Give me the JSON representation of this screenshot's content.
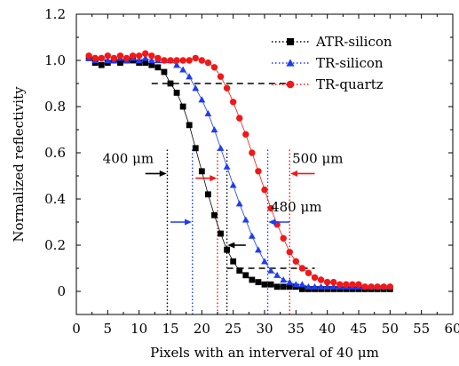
{
  "chart_data": {
    "type": "scatter",
    "xlabel": "Pixels with an interveral of 40 μm",
    "ylabel": "Normalized reflectivity",
    "xlim": [
      0,
      60
    ],
    "ylim": [
      -0.1,
      1.2
    ],
    "x_ticks": [
      0,
      5,
      10,
      15,
      20,
      25,
      30,
      35,
      40,
      45,
      50,
      55,
      60
    ],
    "y_ticks": [
      0,
      0.2,
      0.4,
      0.6,
      0.8,
      1.0,
      1.2
    ],
    "x_tick_labels": [
      "0",
      "5",
      "10",
      "15",
      "20",
      "25",
      "30",
      "35",
      "40",
      "45",
      "50",
      "55",
      "60"
    ],
    "y_tick_labels": [
      "0",
      "0.2",
      "0.4",
      "0.6",
      "0.8",
      "1.0",
      "1.2"
    ],
    "grid": false,
    "legend_position": "top-right",
    "series": [
      {
        "name": "ATR-silicon",
        "color": "#000000",
        "marker": "square",
        "x": [
          2,
          3,
          4,
          5,
          6,
          7,
          8,
          9,
          10,
          11,
          12,
          13,
          14,
          15,
          16,
          17,
          18,
          19,
          20,
          21,
          22,
          23,
          24,
          25,
          26,
          27,
          28,
          29,
          30,
          31,
          32,
          33,
          34,
          35,
          36,
          37,
          38,
          39,
          40,
          41,
          42,
          43,
          44,
          45,
          46,
          47,
          48,
          49,
          50
        ],
        "y": [
          1.01,
          0.99,
          0.98,
          0.99,
          1.0,
          0.99,
          1.0,
          1.0,
          0.99,
          0.99,
          0.98,
          0.97,
          0.95,
          0.9,
          0.86,
          0.8,
          0.72,
          0.62,
          0.52,
          0.42,
          0.33,
          0.25,
          0.18,
          0.13,
          0.09,
          0.07,
          0.05,
          0.04,
          0.03,
          0.03,
          0.02,
          0.02,
          0.02,
          0.02,
          0.01,
          0.01,
          0.01,
          0.01,
          0.01,
          0.01,
          0.01,
          0.01,
          0.01,
          0.01,
          0.01,
          0.01,
          0.01,
          0.01,
          0.01
        ]
      },
      {
        "name": "TR-silicon",
        "color": "#1e3cf0",
        "marker": "triangle",
        "x": [
          2,
          3,
          4,
          5,
          6,
          7,
          8,
          9,
          10,
          11,
          12,
          13,
          14,
          15,
          16,
          17,
          18,
          19,
          20,
          21,
          22,
          23,
          24,
          25,
          26,
          27,
          28,
          29,
          30,
          31,
          32,
          33,
          34,
          35,
          36,
          37,
          38,
          39,
          40,
          41,
          42,
          43,
          44,
          45,
          46,
          47,
          48,
          49,
          50
        ],
        "y": [
          1.01,
          1.0,
          1.01,
          1.0,
          1.0,
          1.01,
          1.0,
          1.01,
          1.0,
          1.01,
          1.0,
          1.0,
          1.0,
          1.0,
          0.98,
          0.96,
          0.93,
          0.88,
          0.83,
          0.77,
          0.7,
          0.62,
          0.54,
          0.46,
          0.38,
          0.31,
          0.24,
          0.18,
          0.13,
          0.09,
          0.07,
          0.05,
          0.04,
          0.03,
          0.03,
          0.02,
          0.02,
          0.02,
          0.02,
          0.02,
          0.02,
          0.02,
          0.02,
          0.02,
          0.02,
          0.02,
          0.02,
          0.02,
          0.02
        ]
      },
      {
        "name": "TR-quartz",
        "color": "#f01818",
        "marker": "circle",
        "x": [
          2,
          3,
          4,
          5,
          6,
          7,
          8,
          9,
          10,
          11,
          12,
          13,
          14,
          15,
          16,
          17,
          18,
          19,
          20,
          21,
          22,
          23,
          24,
          25,
          26,
          27,
          28,
          29,
          30,
          31,
          32,
          33,
          34,
          35,
          36,
          37,
          38,
          39,
          40,
          41,
          42,
          43,
          44,
          45,
          46,
          47,
          48,
          49,
          50
        ],
        "y": [
          1.02,
          1.01,
          1.01,
          1.02,
          1.01,
          1.02,
          1.01,
          1.02,
          1.02,
          1.03,
          1.02,
          1.01,
          1.0,
          1.0,
          1.0,
          1.0,
          1.0,
          1.01,
          1.0,
          0.99,
          0.97,
          0.93,
          0.88,
          0.82,
          0.75,
          0.68,
          0.6,
          0.52,
          0.44,
          0.36,
          0.29,
          0.23,
          0.17,
          0.13,
          0.1,
          0.08,
          0.06,
          0.05,
          0.04,
          0.04,
          0.03,
          0.03,
          0.03,
          0.03,
          0.02,
          0.02,
          0.02,
          0.02,
          0.02
        ]
      }
    ],
    "annotations": [
      {
        "text": "400 μm",
        "color": "#000000"
      },
      {
        "text": "480 μm",
        "color": "#1e3cf0"
      },
      {
        "text": "500 μm",
        "color": "#f01818"
      }
    ],
    "dashed_levels": [
      {
        "y": 0.9,
        "x_range": [
          12,
          34
        ]
      },
      {
        "y": 0.1,
        "x_range": [
          24,
          38
        ]
      }
    ],
    "vertical_markers": [
      {
        "x": 14.5,
        "color": "#000000"
      },
      {
        "x": 24,
        "color": "#000000"
      },
      {
        "x": 18.5,
        "color": "#1e3cf0"
      },
      {
        "x": 30.5,
        "color": "#1e3cf0"
      },
      {
        "x": 22.5,
        "color": "#f01818"
      },
      {
        "x": 34,
        "color": "#f01818"
      }
    ],
    "arrows": [
      {
        "x_from": 11,
        "x_to": 14.4,
        "y": 0.51,
        "color": "#000000"
      },
      {
        "x_from": 27,
        "x_to": 24.1,
        "y": 0.2,
        "color": "#000000"
      },
      {
        "x_from": 15,
        "x_to": 18.4,
        "y": 0.3,
        "color": "#1e3cf0"
      },
      {
        "x_from": 34,
        "x_to": 30.6,
        "y": 0.3,
        "color": "#1e3cf0"
      },
      {
        "x_from": 19,
        "x_to": 22.4,
        "y": 0.49,
        "color": "#f01818"
      },
      {
        "x_from": 38,
        "x_to": 34.1,
        "y": 0.51,
        "color": "#f01818"
      }
    ]
  }
}
